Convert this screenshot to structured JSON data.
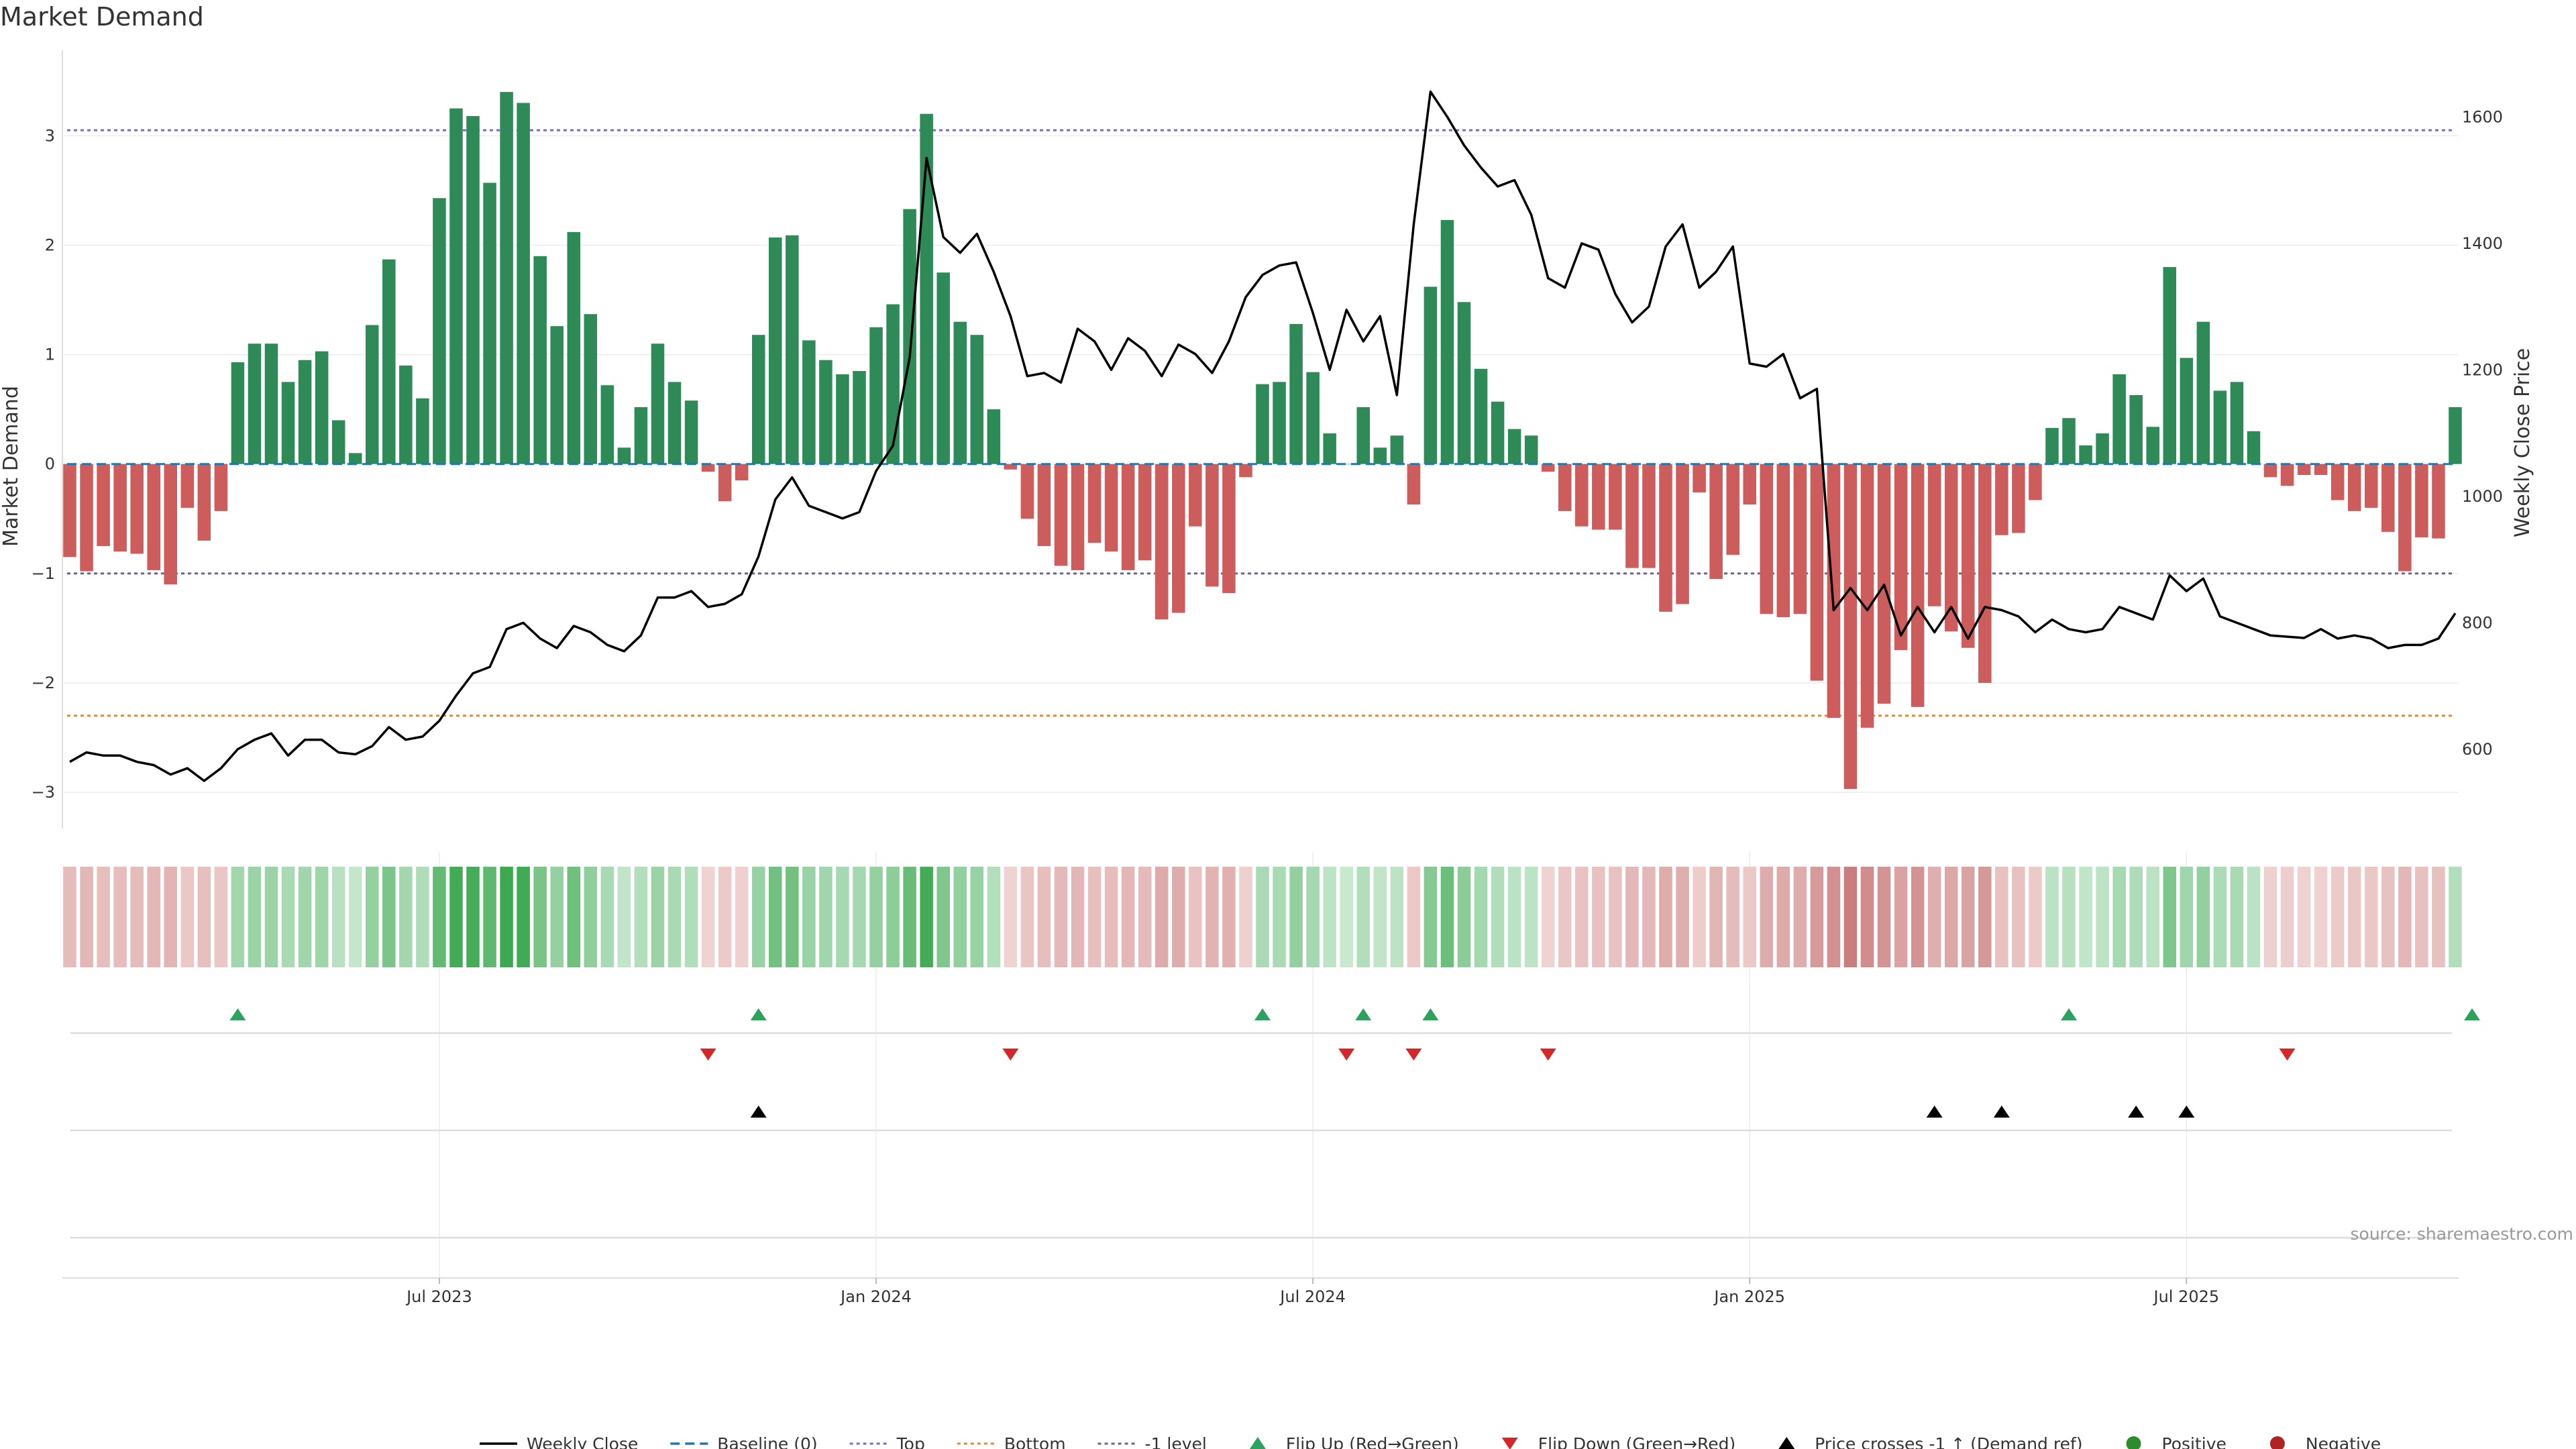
{
  "chart_data": {
    "type": "bar",
    "title": "Market Demand",
    "ylabel": "Market Demand",
    "y2label": "Weekly Close Price",
    "ylim": [
      -3.3,
      3.75
    ],
    "y2lim": [
      480,
      1700
    ],
    "yticks": [
      -3,
      -2,
      -1,
      0,
      1,
      2,
      3
    ],
    "yticklabels": [
      "−3",
      "−2",
      "−1",
      "0",
      "1",
      "2",
      "3"
    ],
    "y2ticks": [
      600,
      800,
      1000,
      1200,
      1400,
      1600
    ],
    "y2ticklabels": [
      "600",
      "800",
      "1000",
      "1200",
      "1400",
      "1600"
    ],
    "xticks": [
      22,
      48,
      74,
      100,
      126
    ],
    "xticklabels": [
      "Jul 2023",
      "Jan 2024",
      "Jul 2024",
      "Jan 2025",
      "Jul 2025"
    ],
    "reference_lines": {
      "top": 3.05,
      "bottom": -2.3,
      "minus_one": -1.0,
      "baseline": 0
    },
    "demand": [
      -0.85,
      -0.98,
      -0.75,
      -0.8,
      -0.82,
      -0.97,
      -1.1,
      -0.4,
      -0.7,
      -0.43,
      0.93,
      1.1,
      1.1,
      0.75,
      0.95,
      1.03,
      0.4,
      0.1,
      1.27,
      1.87,
      0.9,
      0.6,
      2.43,
      3.25,
      3.18,
      2.57,
      3.4,
      3.3,
      1.9,
      1.26,
      2.12,
      1.37,
      0.72,
      0.15,
      0.52,
      1.1,
      0.75,
      0.58,
      -0.07,
      -0.34,
      -0.15,
      1.18,
      2.07,
      2.09,
      1.13,
      0.95,
      0.82,
      0.85,
      1.25,
      1.46,
      2.33,
      3.2,
      1.75,
      1.3,
      1.18,
      0.5,
      -0.05,
      -0.5,
      -0.75,
      -0.93,
      -0.97,
      -0.72,
      -0.8,
      -0.97,
      -0.88,
      -1.42,
      -1.36,
      -0.57,
      -1.12,
      -1.18,
      -0.12,
      0.73,
      0.75,
      1.28,
      0.84,
      0.28,
      0.0,
      0.52,
      0.15,
      0.26,
      -0.37,
      1.62,
      2.23,
      1.48,
      0.87,
      0.57,
      0.32,
      0.26,
      -0.07,
      -0.43,
      -0.57,
      -0.6,
      -0.6,
      -0.95,
      -0.95,
      -1.35,
      -1.28,
      -0.26,
      -1.05,
      -0.83,
      -0.37,
      -1.37,
      -1.4,
      -1.37,
      -1.98,
      -2.32,
      -2.97,
      -2.41,
      -2.19,
      -1.7,
      -2.22,
      -1.3,
      -1.53,
      -1.68,
      -2.0,
      -0.65,
      -0.63,
      -0.33,
      0.33,
      0.42,
      0.17,
      0.28,
      0.82,
      0.63,
      0.34,
      1.8,
      0.97,
      1.3,
      0.67,
      0.75,
      0.3,
      -0.12,
      -0.2,
      -0.1,
      -0.1,
      -0.33,
      -0.43,
      -0.4,
      -0.62,
      -0.98,
      -0.67,
      -0.68,
      0.52
    ],
    "price": [
      580,
      595,
      590,
      590,
      580,
      575,
      560,
      570,
      550,
      570,
      600,
      615,
      625,
      590,
      615,
      615,
      595,
      592,
      605,
      635,
      615,
      620,
      645,
      685,
      720,
      730,
      790,
      800,
      775,
      760,
      795,
      785,
      765,
      755,
      780,
      840,
      840,
      850,
      825,
      830,
      845,
      905,
      995,
      1030,
      985,
      975,
      965,
      975,
      1040,
      1080,
      1220,
      1535,
      1410,
      1385,
      1415,
      1355,
      1285,
      1190,
      1195,
      1180,
      1265,
      1245,
      1200,
      1250,
      1230,
      1190,
      1240,
      1225,
      1195,
      1245,
      1315,
      1350,
      1365,
      1370,
      1290,
      1200,
      1295,
      1245,
      1285,
      1160,
      1430,
      1640,
      1600,
      1555,
      1520,
      1490,
      1500,
      1445,
      1345,
      1330,
      1400,
      1390,
      1320,
      1275,
      1300,
      1395,
      1430,
      1330,
      1355,
      1395,
      1210,
      1205,
      1225,
      1155,
      1170,
      820,
      855,
      820,
      860,
      780,
      825,
      785,
      825,
      775,
      825,
      820,
      810,
      785,
      805,
      790,
      785,
      790,
      825,
      815,
      805,
      875,
      850,
      870,
      810,
      800,
      790,
      780,
      778,
      776,
      790,
      775,
      780,
      775,
      760,
      765,
      765,
      775,
      815
    ],
    "flip_up": [
      10,
      41,
      71,
      77,
      81,
      119,
      143
    ],
    "flip_down": [
      38,
      56,
      76,
      80,
      88,
      132
    ],
    "price_cross": [
      41,
      111,
      115,
      123,
      126
    ]
  },
  "colors": {
    "positive_bar": "#2e8b57",
    "negative_bar": "#cd5c5c",
    "price_line": "#000000",
    "baseline": "#1f77b4",
    "top_line": "#7b68c8",
    "bottom_line": "#e8852f",
    "minus_one_line": "#66668a",
    "flip_up_marker": "#2ca25f",
    "flip_down_marker": "#d62728",
    "cross_marker": "#000000",
    "positive_dot": "#2a8c2a",
    "negative_dot": "#b22222"
  },
  "source": "source: sharemaestro.com",
  "legend": [
    {
      "label": "Weekly Close",
      "icon": "solid-line-icon"
    },
    {
      "label": "Baseline (0)",
      "icon": "dashed-line-icon"
    },
    {
      "label": "Top",
      "icon": "dotted-line-icon"
    },
    {
      "label": "Bottom",
      "icon": "dotted-line-icon"
    },
    {
      "label": "-1 level",
      "icon": "dotted-line-icon"
    },
    {
      "label": "Flip Up (Red→Green)",
      "icon": "triangle-up-icon"
    },
    {
      "label": "Flip Down (Green→Red)",
      "icon": "triangle-down-icon"
    },
    {
      "label": "Price crosses -1 ↑ (Demand ref)",
      "icon": "triangle-up-icon"
    },
    {
      "label": "Positive",
      "icon": "circle-icon"
    },
    {
      "label": "Negative",
      "icon": "circle-icon"
    }
  ]
}
